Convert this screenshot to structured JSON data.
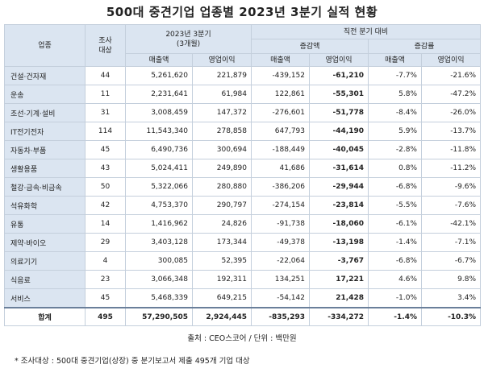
{
  "title": "500대 중견기업 업종별 2023년 3분기 실적 현황",
  "header": {
    "industry": "업종",
    "surveyed": "조사\n대상",
    "q3": "2023년 3분기\n(3개월)",
    "prev_compare": "직전 분기 대비",
    "change_amount": "증감액",
    "change_rate": "증감률",
    "sales": "매출액",
    "op_profit": "영업이익"
  },
  "rows": [
    {
      "name": "건설·건자재",
      "count": "44",
      "sales": "5,261,620",
      "op": "221,879",
      "sales_chg": "-439,152",
      "op_chg": "-61,210",
      "sales_rate": "-7.7%",
      "op_rate": "-21.6%"
    },
    {
      "name": "운송",
      "count": "11",
      "sales": "2,231,641",
      "op": "61,984",
      "sales_chg": "122,861",
      "op_chg": "-55,301",
      "sales_rate": "5.8%",
      "op_rate": "-47.2%"
    },
    {
      "name": "조선·기계·설비",
      "count": "31",
      "sales": "3,008,459",
      "op": "147,372",
      "sales_chg": "-276,601",
      "op_chg": "-51,778",
      "sales_rate": "-8.4%",
      "op_rate": "-26.0%"
    },
    {
      "name": "IT전기전자",
      "count": "114",
      "sales": "11,543,340",
      "op": "278,858",
      "sales_chg": "647,793",
      "op_chg": "-44,190",
      "sales_rate": "5.9%",
      "op_rate": "-13.7%"
    },
    {
      "name": "자동차·부품",
      "count": "45",
      "sales": "6,490,736",
      "op": "300,694",
      "sales_chg": "-188,449",
      "op_chg": "-40,045",
      "sales_rate": "-2.8%",
      "op_rate": "-11.8%"
    },
    {
      "name": "생활용품",
      "count": "43",
      "sales": "5,024,411",
      "op": "249,890",
      "sales_chg": "41,686",
      "op_chg": "-31,614",
      "sales_rate": "0.8%",
      "op_rate": "-11.2%"
    },
    {
      "name": "철강·금속·비금속",
      "count": "50",
      "sales": "5,322,066",
      "op": "280,880",
      "sales_chg": "-386,206",
      "op_chg": "-29,944",
      "sales_rate": "-6.8%",
      "op_rate": "-9.6%"
    },
    {
      "name": "석유화학",
      "count": "42",
      "sales": "4,753,370",
      "op": "290,797",
      "sales_chg": "-274,154",
      "op_chg": "-23,814",
      "sales_rate": "-5.5%",
      "op_rate": "-7.6%"
    },
    {
      "name": "유통",
      "count": "14",
      "sales": "1,416,962",
      "op": "24,826",
      "sales_chg": "-91,738",
      "op_chg": "-18,060",
      "sales_rate": "-6.1%",
      "op_rate": "-42.1%"
    },
    {
      "name": "제약·바이오",
      "count": "29",
      "sales": "3,403,128",
      "op": "173,344",
      "sales_chg": "-49,378",
      "op_chg": "-13,198",
      "sales_rate": "-1.4%",
      "op_rate": "-7.1%"
    },
    {
      "name": "의료기기",
      "count": "4",
      "sales": "300,085",
      "op": "52,395",
      "sales_chg": "-22,064",
      "op_chg": "-3,767",
      "sales_rate": "-6.8%",
      "op_rate": "-6.7%"
    },
    {
      "name": "식음료",
      "count": "23",
      "sales": "3,066,348",
      "op": "192,311",
      "sales_chg": "134,251",
      "op_chg": "17,221",
      "sales_rate": "4.6%",
      "op_rate": "9.8%"
    },
    {
      "name": "서비스",
      "count": "45",
      "sales": "5,468,339",
      "op": "649,215",
      "sales_chg": "-54,142",
      "op_chg": "21,428",
      "sales_rate": "-1.0%",
      "op_rate": "3.4%"
    }
  ],
  "total": {
    "name": "합계",
    "count": "495",
    "sales": "57,290,505",
    "op": "2,924,445",
    "sales_chg": "-835,293",
    "op_chg": "-334,272",
    "sales_rate": "-1.4%",
    "op_rate": "-10.3%"
  },
  "source": "출처 : CEO스코어 / 단위 : 백만원",
  "note": "* 조사대상 : 500대 중견기업(상장) 중 분기보고서 제출 495개 기업 대상"
}
